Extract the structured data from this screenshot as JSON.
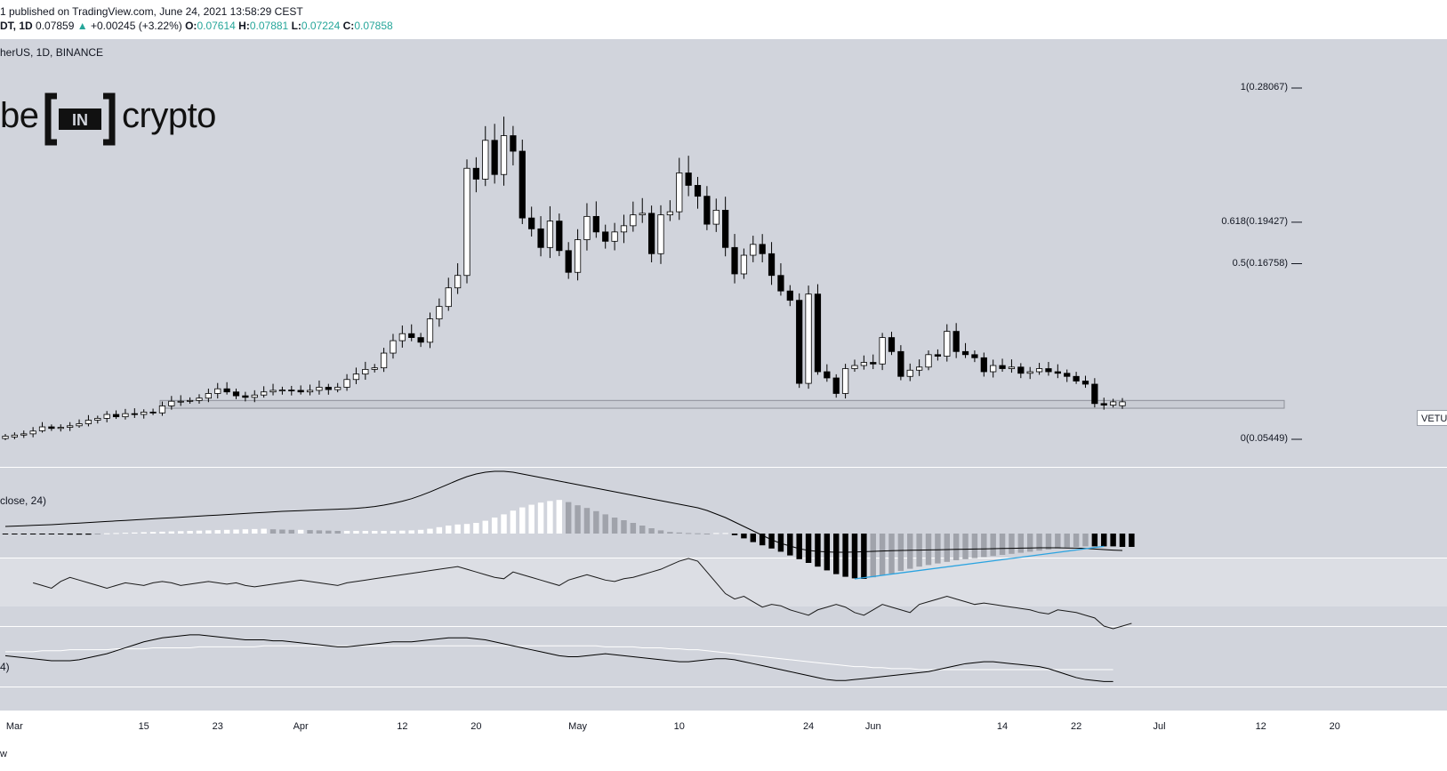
{
  "header": {
    "published": "1 published on TradingView.com, June 24, 2021 13:58:29 CEST",
    "symbol_prefix": "DT, 1D",
    "last": "0.07859",
    "arrow": "▲",
    "change": "+0.00245 (+3.22%)",
    "o_label": "O:",
    "o_value": "0.07614",
    "h_label": "H:",
    "h_value": "0.07881",
    "l_label": "L:",
    "l_value": "0.07224",
    "c_label": "C:",
    "c_value": "0.07858"
  },
  "pane_labels": {
    "symbol": "herUS, 1D, BINANCE",
    "indicator1": "close, 24)",
    "indicator3": "4)"
  },
  "logo": {
    "left": "be",
    "mid": "IN",
    "right": "crypto"
  },
  "price_tag": "VETUS",
  "footer": "w",
  "colors": {
    "pane_bg": "#d1d4dc",
    "up_candle": "#ffffff",
    "down_candle": "#000000",
    "hist_light": "#ffffff",
    "hist_gray": "#a0a3ab",
    "hist_dark": "#000000",
    "trendline": "#2aa3e0",
    "accent_green": "#26a69a"
  },
  "chart_data": {
    "type": "candlestick",
    "timeframe": "1D",
    "exchange": "BINANCE",
    "fib_levels": [
      {
        "label": "1(0.28067)",
        "value": 0.28067
      },
      {
        "label": "0.618(0.19427)",
        "value": 0.19427
      },
      {
        "label": "0.5(0.16758)",
        "value": 0.16758
      },
      {
        "label": "0(0.05449)",
        "value": 0.05449
      }
    ],
    "support_zone": [
      0.0745,
      0.0795
    ],
    "x_ticks": [
      "Mar",
      "15",
      "23",
      "Apr",
      "12",
      "20",
      "May",
      "10",
      "24",
      "Jun",
      "14",
      "22",
      "Jul",
      "12",
      "20"
    ],
    "closes": [
      0.0565,
      0.0572,
      0.058,
      0.0598,
      0.0625,
      0.0615,
      0.0622,
      0.0632,
      0.0645,
      0.0668,
      0.068,
      0.0705,
      0.069,
      0.071,
      0.0705,
      0.072,
      0.0715,
      0.076,
      0.079,
      0.079,
      0.0795,
      0.081,
      0.084,
      0.087,
      0.085,
      0.0825,
      0.0815,
      0.083,
      0.085,
      0.086,
      0.0862,
      0.086,
      0.085,
      0.086,
      0.088,
      0.0865,
      0.088,
      0.093,
      0.0965,
      0.0995,
      0.1005,
      0.11,
      0.118,
      0.1225,
      0.12,
      0.117,
      0.132,
      0.14,
      0.152,
      0.16,
      0.229,
      0.222,
      0.247,
      0.225,
      0.25,
      0.24,
      0.197,
      0.19,
      0.178,
      0.195,
      0.176,
      0.162,
      0.183,
      0.198,
      0.188,
      0.182,
      0.188,
      0.192,
      0.199,
      0.2,
      0.174,
      0.199,
      0.201,
      0.226,
      0.218,
      0.211,
      0.193,
      0.202,
      0.178,
      0.161,
      0.173,
      0.18,
      0.174,
      0.16,
      0.15,
      0.144,
      0.0905,
      0.148,
      0.098,
      0.094,
      0.084,
      0.1,
      0.102,
      0.104,
      0.103,
      0.12,
      0.111,
      0.095,
      0.099,
      0.101,
      0.109,
      0.108,
      0.124,
      0.111,
      0.109,
      0.107,
      0.098,
      0.102,
      0.1,
      0.101,
      0.097,
      0.098,
      0.1,
      0.098,
      0.097,
      0.095,
      0.092,
      0.09,
      0.0775,
      0.0765,
      0.0786,
      0.0786
    ],
    "opens": [
      0.055,
      0.056,
      0.0572,
      0.058,
      0.06,
      0.0625,
      0.0615,
      0.0622,
      0.0632,
      0.0645,
      0.0668,
      0.068,
      0.0705,
      0.069,
      0.071,
      0.0705,
      0.072,
      0.0715,
      0.076,
      0.079,
      0.079,
      0.0795,
      0.081,
      0.084,
      0.087,
      0.085,
      0.0825,
      0.0815,
      0.083,
      0.085,
      0.086,
      0.0862,
      0.086,
      0.085,
      0.086,
      0.088,
      0.0865,
      0.088,
      0.093,
      0.0965,
      0.0995,
      0.1005,
      0.11,
      0.118,
      0.1225,
      0.12,
      0.117,
      0.132,
      0.14,
      0.152,
      0.16,
      0.229,
      0.222,
      0.247,
      0.225,
      0.25,
      0.24,
      0.197,
      0.19,
      0.178,
      0.195,
      0.176,
      0.162,
      0.183,
      0.198,
      0.188,
      0.182,
      0.188,
      0.192,
      0.199,
      0.2,
      0.174,
      0.199,
      0.201,
      0.226,
      0.218,
      0.211,
      0.193,
      0.202,
      0.178,
      0.161,
      0.173,
      0.18,
      0.174,
      0.16,
      0.15,
      0.144,
      0.0905,
      0.148,
      0.098,
      0.094,
      0.084,
      0.1,
      0.102,
      0.104,
      0.103,
      0.12,
      0.111,
      0.095,
      0.099,
      0.101,
      0.109,
      0.108,
      0.124,
      0.111,
      0.109,
      0.107,
      0.098,
      0.102,
      0.1,
      0.101,
      0.097,
      0.098,
      0.1,
      0.098,
      0.097,
      0.095,
      0.092,
      0.09,
      0.0775,
      0.0765,
      0.0761
    ],
    "histogram": [
      -0.1,
      -0.1,
      -0.1,
      -0.1,
      -0.1,
      -0.1,
      -0.1,
      -0.2,
      -0.2,
      -0.2,
      -0.1,
      0.05,
      0.1,
      0.15,
      0.2,
      0.25,
      0.3,
      0.35,
      0.4,
      0.45,
      0.5,
      0.55,
      0.6,
      0.65,
      0.7,
      0.75,
      0.8,
      0.85,
      0.9,
      0.8,
      0.75,
      0.7,
      0.7,
      0.65,
      0.6,
      0.55,
      0.5,
      0.5,
      0.5,
      0.5,
      0.5,
      0.5,
      0.5,
      0.55,
      0.6,
      0.7,
      0.9,
      1.2,
      1.5,
      1.7,
      1.8,
      2.0,
      2.4,
      3.0,
      3.6,
      4.3,
      4.9,
      5.4,
      5.8,
      6.1,
      6.3,
      5.9,
      5.3,
      4.8,
      4.2,
      3.6,
      3.0,
      2.5,
      2.0,
      1.5,
      1.0,
      0.6,
      0.3,
      0.2,
      0.1,
      0.05,
      0.0,
      0.1,
      0.1,
      -0.3,
      -0.9,
      -1.6,
      -2.2,
      -2.8,
      -3.4,
      -4.1,
      -4.8,
      -5.5,
      -6.2,
      -6.9,
      -7.6,
      -8.1,
      -8.4,
      -8.5,
      -8.2,
      -7.8,
      -7.5,
      -7.0,
      -6.6,
      -6.2,
      -5.9,
      -5.6,
      -5.3,
      -5.0,
      -4.8,
      -4.6,
      -4.4,
      -4.2,
      -4.0,
      -3.8,
      -3.6,
      -3.4,
      -3.2,
      -3.0,
      -2.8,
      -2.6,
      -2.5,
      -2.4,
      -2.4,
      -2.4,
      -2.4,
      -2.5,
      -2.5
    ],
    "signal_line": [
      4.0,
      4.2,
      4.4,
      4.6,
      4.8,
      5.0,
      5.3,
      5.6,
      5.9,
      6.2,
      6.5,
      6.8,
      7.1,
      7.4,
      7.7,
      8.0,
      8.3,
      8.6,
      8.9,
      9.2,
      9.5,
      9.8,
      10.1,
      10.4,
      10.7,
      11.0,
      11.3,
      11.6,
      11.9,
      12.2,
      12.5,
      12.7,
      12.9,
      13.1,
      13.3,
      13.5,
      13.7,
      13.9,
      14.2,
      14.6,
      15.2,
      16.0,
      17.0,
      18.2,
      19.6,
      21.4,
      23.4,
      25.6,
      27.8,
      30.0,
      32.0,
      33.5,
      34.5,
      35.0,
      35.0,
      34.5,
      33.5,
      32.5,
      31.5,
      30.5,
      29.5,
      28.5,
      27.5,
      26.5,
      25.5,
      24.5,
      23.5,
      22.5,
      21.5,
      20.5,
      19.5,
      18.5,
      17.5,
      16.5,
      15.5,
      14.5,
      13.0,
      11.0,
      9.0,
      6.5,
      4.0,
      1.5,
      -1.0,
      -3.5,
      -5.5,
      -7.0,
      -8.5,
      -9.5,
      -10.0,
      -10.3,
      -10.5,
      -10.5,
      -10.4,
      -10.2,
      -10.0,
      -9.8,
      -9.6,
      -9.5,
      -9.4,
      -9.3,
      -9.2,
      -9.1,
      -9.0,
      -8.9,
      -8.8,
      -8.7,
      -8.6,
      -8.5,
      -8.4,
      -8.3,
      -8.2,
      -8.1,
      -8.0,
      -8.0,
      -8.0,
      -8.1,
      -8.2,
      -8.4,
      -8.7,
      -9.0,
      -9.3,
      -9.5
    ],
    "rsi": [
      null,
      null,
      null,
      62,
      60,
      58,
      63,
      66,
      64,
      62,
      60,
      58,
      60,
      62,
      61,
      60,
      62,
      63,
      62,
      60,
      61,
      62,
      63,
      62,
      61,
      62,
      60,
      59,
      60,
      61,
      62,
      63,
      64,
      63,
      62,
      61,
      60,
      62,
      63,
      64,
      65,
      66,
      67,
      68,
      69,
      70,
      71,
      72,
      73,
      74,
      72,
      70,
      68,
      66,
      65,
      70,
      68,
      66,
      64,
      62,
      60,
      64,
      66,
      68,
      66,
      64,
      63,
      65,
      66,
      68,
      70,
      72,
      75,
      78,
      80,
      78,
      70,
      62,
      54,
      50,
      52,
      48,
      44,
      46,
      45,
      42,
      40,
      38,
      42,
      44,
      46,
      44,
      40,
      38,
      42,
      46,
      44,
      42,
      40,
      46,
      48,
      50,
      52,
      50,
      48,
      46,
      47,
      46,
      45,
      44,
      43,
      42,
      40,
      39,
      42,
      41,
      40,
      38,
      36,
      30,
      28,
      30,
      32
    ],
    "osc_black": [
      56,
      55,
      54,
      53,
      52,
      51,
      51,
      51,
      52,
      54,
      56,
      58,
      61,
      64,
      67,
      70,
      72,
      74,
      75,
      76,
      77,
      77,
      76,
      75,
      74,
      73,
      72,
      72,
      72,
      71,
      71,
      70,
      69,
      68,
      67,
      66,
      65,
      65,
      66,
      67,
      68,
      69,
      70,
      70,
      70,
      71,
      72,
      73,
      74,
      74,
      74,
      73,
      72,
      70,
      68,
      66,
      64,
      62,
      60,
      58,
      56,
      55,
      55,
      56,
      57,
      58,
      57,
      56,
      55,
      54,
      53,
      52,
      51,
      50,
      50,
      51,
      52,
      53,
      53,
      52,
      50,
      48,
      46,
      44,
      42,
      40,
      38,
      36,
      34,
      32,
      31,
      31,
      32,
      33,
      34,
      35,
      36,
      37,
      38,
      39,
      40,
      42,
      44,
      46,
      48,
      49,
      50,
      50,
      49,
      48,
      47,
      46,
      45,
      43,
      40,
      37,
      34,
      32,
      31,
      30,
      30
    ],
    "osc_white": [
      60,
      60,
      60,
      60,
      61,
      61,
      61,
      62,
      62,
      62,
      62,
      62,
      63,
      63,
      63,
      63,
      64,
      64,
      64,
      64,
      64,
      65,
      65,
      65,
      65,
      65,
      65,
      65,
      66,
      66,
      66,
      66,
      66,
      66,
      66,
      66,
      66,
      66,
      66,
      66,
      66,
      66,
      66,
      66,
      66,
      66,
      66,
      66,
      66,
      66,
      66,
      66,
      66,
      66,
      66,
      66,
      66,
      66,
      66,
      66,
      66,
      66,
      66,
      66,
      66,
      65,
      65,
      65,
      65,
      64,
      64,
      64,
      63,
      63,
      62,
      62,
      61,
      60,
      59,
      58,
      57,
      56,
      55,
      54,
      53,
      52,
      51,
      50,
      49,
      48,
      47,
      46,
      45,
      45,
      44,
      44,
      43,
      43,
      43,
      42,
      42,
      42,
      42,
      42,
      42,
      42,
      42,
      42,
      42,
      42,
      42,
      42,
      42,
      42,
      42,
      42,
      42,
      42,
      42,
      42,
      42
    ]
  }
}
